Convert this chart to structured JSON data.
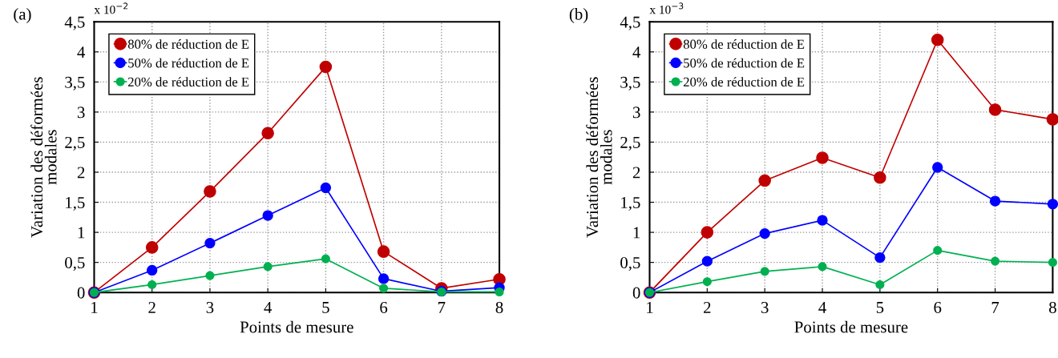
{
  "chart_data": [
    {
      "type": "line",
      "title": "(a)",
      "xlabel": "Points de mesure",
      "ylabel": "Variation des déformées\nmodales",
      "annotations": [
        "x 10$^{−2}$"
      ],
      "x": [
        1,
        2,
        3,
        4,
        5,
        6,
        7,
        8
      ],
      "xlim": [
        1,
        8
      ],
      "xticks": [
        1,
        2,
        3,
        4,
        5,
        6,
        7,
        8
      ],
      "ylim": [
        0,
        4.5
      ],
      "yticks": [
        0,
        {
          "value": 0.5,
          "label": "0,5"
        },
        1,
        {
          "value": 1.5,
          "label": "1,5"
        },
        2,
        {
          "value": 2.5,
          "label": "2,5"
        },
        3,
        {
          "value": 3.5,
          "label": "3,5"
        },
        4,
        {
          "value": 4.5,
          "label": "4,5"
        }
      ],
      "grid": true,
      "legend": "top left",
      "marker": "circle",
      "line_style": "solid",
      "series": [
        {
          "name": "80% de réduction de E",
          "color": "#c00000",
          "values": [
            0,
            0.75,
            1.68,
            2.65,
            3.75,
            0.68,
            0.07,
            0.22
          ]
        },
        {
          "name": "50% de réduction de E",
          "color": "#0000ff",
          "values": [
            0,
            0.37,
            0.82,
            1.28,
            1.74,
            0.23,
            0.02,
            0.08
          ]
        },
        {
          "name": "20% de réduction de E",
          "color": "#00b050",
          "values": [
            0,
            0.13,
            0.28,
            0.43,
            0.56,
            0.07,
            0.01,
            0.01
          ]
        }
      ]
    },
    {
      "type": "line",
      "title": "(b)",
      "xlabel": "Points de mesure",
      "ylabel": "Variation des déformées\nmodales",
      "annotations": [
        "x 10$^{−3}$"
      ],
      "x": [
        1,
        2,
        3,
        4,
        5,
        6,
        7,
        8
      ],
      "xlim": [
        1,
        8
      ],
      "xticks": [
        1,
        2,
        3,
        4,
        5,
        6,
        7,
        8
      ],
      "ylim": [
        0,
        4.5
      ],
      "yticks": [
        0,
        {
          "value": 0.5,
          "label": "0,5"
        },
        1,
        {
          "value": 1.5,
          "label": "1,5"
        },
        2,
        {
          "value": 2.5,
          "label": "2,5"
        },
        3,
        {
          "value": 3.5,
          "label": "3,5"
        },
        4,
        {
          "value": 4.5,
          "label": "4,5"
        }
      ],
      "grid": true,
      "legend": "top left",
      "marker": "circle",
      "line_style": "solid",
      "series": [
        {
          "name": "80% de réduction de E",
          "color": "#c00000",
          "values": [
            0,
            1.0,
            1.86,
            2.24,
            1.91,
            4.2,
            3.04,
            2.88
          ]
        },
        {
          "name": "50% de réduction de E",
          "color": "#0000ff",
          "values": [
            0,
            0.52,
            0.98,
            1.2,
            0.58,
            2.08,
            1.52,
            1.47
          ]
        },
        {
          "name": "20% de réduction de E",
          "color": "#00b050",
          "values": [
            0,
            0.18,
            0.35,
            0.43,
            0.13,
            0.7,
            0.52,
            0.5
          ]
        }
      ]
    }
  ]
}
